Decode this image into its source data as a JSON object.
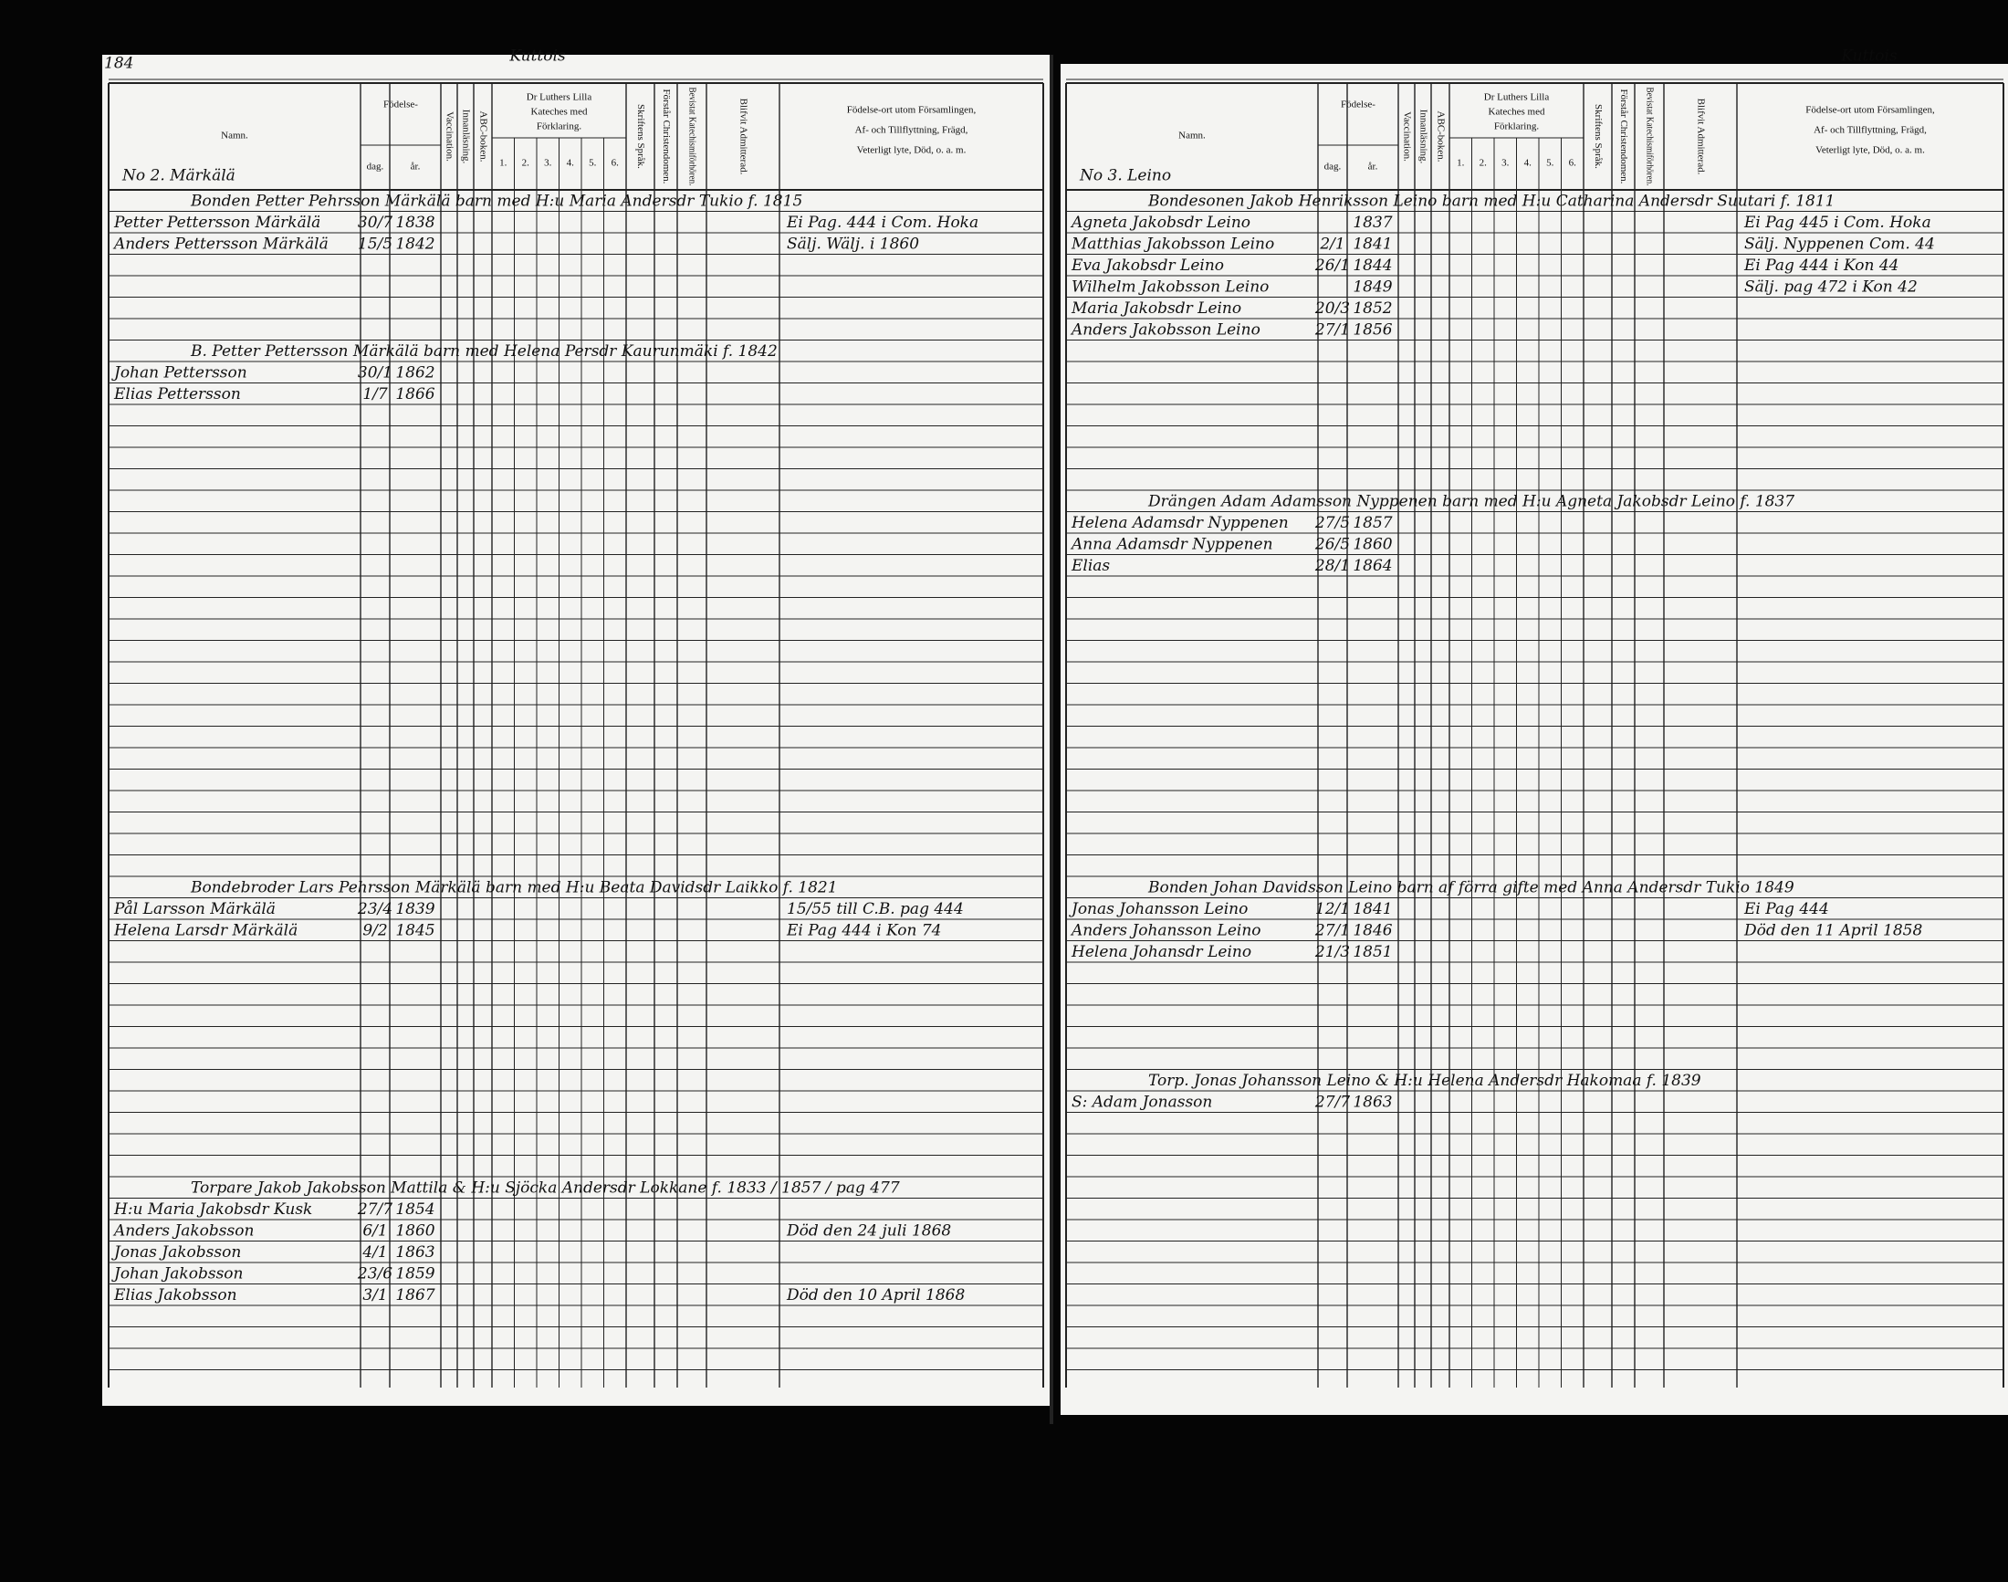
{
  "left_page": {
    "page_number": "184",
    "village": "Kuttois",
    "house": "No 2. Märkälä",
    "header": {
      "name": "Namn.",
      "birth": "Födelse-",
      "day": "dag.",
      "year": "år.",
      "vaccination": "Vaccination.",
      "reading": "Innanläsning.",
      "abc": "ABC-boken.",
      "luther": [
        "Dr Luthers Lilla",
        "Kateches med",
        "Förklaring."
      ],
      "parts": [
        "1.",
        "2.",
        "3.",
        "4.",
        "5.",
        "6."
      ],
      "scripture": "Skriftens Språk.",
      "understands": "Förstår Christendomen.",
      "attended": "Bevistat Katechismiförhören.",
      "admitted": "Blifvit Admitterad.",
      "remarks": [
        "Födelse-ort utom Församlingen,",
        "Af- och Tillflyttning, Frägd,",
        "Veterligt lyte, Död, o. a. m."
      ]
    },
    "groups": [
      {
        "headline": "Bonden Petter Pehrsson Märkälä barn med H:u Maria Andersdr Tukio f. 1815",
        "members": [
          {
            "name": "Petter Pettersson Märkälä",
            "day": "30/7",
            "year": "1838",
            "remark": "Ei Pag. 444 i Com. Hoka"
          },
          {
            "name": "Anders Pettersson Märkälä",
            "day": "15/5",
            "year": "1842",
            "remark": "Sälj. Wälj. i 1860"
          }
        ]
      },
      {
        "headline": "B. Petter Pettersson Märkälä barn med Helena Persdr Kaurunmäki f. 1842",
        "members": [
          {
            "name": "Johan Pettersson",
            "day": "30/1",
            "year": "1862",
            "remark": ""
          },
          {
            "name": "Elias Pettersson",
            "day": "1/7",
            "year": "1866",
            "remark": ""
          }
        ]
      },
      {
        "headline": "Bondebroder Lars Pehrsson Märkälä barn med H:u Beata Davidsdr Laikko f. 1821",
        "members": [
          {
            "name": "Pål Larsson Märkälä",
            "day": "23/4",
            "year": "1839",
            "remark": "15/55 till C.B. pag 444"
          },
          {
            "name": "Helena Larsdr Märkälä",
            "day": "9/2",
            "year": "1845",
            "remark": "Ei Pag 444 i Kon 74"
          }
        ]
      },
      {
        "headline": "Torpare Jakob Jakobsson Mattila & H:u Sjöcka Andersdr Lokkane f. 1833 / 1857 / pag 477",
        "members": [
          {
            "name": "H:u Maria Jakobsdr Kusk",
            "day": "27/7",
            "year": "1854",
            "remark": ""
          },
          {
            "name": "Anders Jakobsson",
            "day": "6/1",
            "year": "1860",
            "remark": "Död den 24 juli 1868"
          },
          {
            "name": "Jonas Jakobsson",
            "day": "4/1",
            "year": "1863",
            "remark": ""
          },
          {
            "name": "Johan Jakobsson",
            "day": "23/6",
            "year": "1859",
            "remark": ""
          },
          {
            "name": "Elias Jakobsson",
            "day": "3/1",
            "year": "1867",
            "remark": "Död den 10 April 1868"
          }
        ]
      }
    ]
  },
  "right_page": {
    "village": "Kuttois",
    "house": "No 3. Leino",
    "header": {
      "name": "Namn.",
      "birth": "Födelse-",
      "day": "dag.",
      "year": "år.",
      "vaccination": "Vaccination.",
      "reading": "Innanläsning.",
      "abc": "ABC-boken.",
      "luther": [
        "Dr Luthers Lilla",
        "Kateches med",
        "Förklaring."
      ],
      "parts": [
        "1.",
        "2.",
        "3.",
        "4.",
        "5.",
        "6."
      ],
      "scripture": "Skriftens Språk.",
      "understands": "Förstår Christendomen.",
      "attended": "Bevistat Katechismiförhören.",
      "admitted": "Blifvit Admitterad.",
      "remarks": [
        "Födelse-ort utom Församlingen,",
        "Af- och Tillflyttning, Frägd,",
        "Veterligt lyte, Död, o. a. m."
      ]
    },
    "groups": [
      {
        "headline": "Bondesonen Jakob Henriksson Leino barn med H:u Catharina Andersdr Suutari f. 1811",
        "members": [
          {
            "name": "Agneta Jakobsdr Leino",
            "day": "",
            "year": "1837",
            "remark": "Ei Pag 445 i Com. Hoka"
          },
          {
            "name": "Matthias Jakobsson Leino",
            "day": "2/1",
            "year": "1841",
            "remark": "Sälj. Nyppenen Com. 44"
          },
          {
            "name": "Eva Jakobsdr Leino",
            "day": "26/1",
            "year": "1844",
            "remark": "Ei Pag 444 i Kon 44"
          },
          {
            "name": "Wilhelm Jakobsson Leino",
            "day": "",
            "year": "1849",
            "remark": "Sälj. pag 472 i Kon 42"
          },
          {
            "name": "Maria Jakobsdr Leino",
            "day": "20/3",
            "year": "1852",
            "remark": ""
          },
          {
            "name": "Anders Jakobsson Leino",
            "day": "27/1",
            "year": "1856",
            "remark": ""
          }
        ]
      },
      {
        "headline": "Drängen Adam Adamsson Nyppenen barn med H:u Agneta Jakobsdr Leino f. 1837",
        "members": [
          {
            "name": "Helena Adamsdr Nyppenen",
            "day": "27/5",
            "year": "1857",
            "remark": ""
          },
          {
            "name": "Anna Adamsdr Nyppenen",
            "day": "26/5",
            "year": "1860",
            "remark": ""
          },
          {
            "name": "Elias",
            "day": "28/1",
            "year": "1864",
            "remark": ""
          }
        ]
      },
      {
        "headline": "Bonden Johan Davidsson Leino barn af förra gifte med Anna Andersdr Tukio 1849",
        "members": [
          {
            "name": "Jonas Johansson Leino",
            "day": "12/1",
            "year": "1841",
            "remark": "Ei Pag 444"
          },
          {
            "name": "Anders Johansson Leino",
            "day": "27/1",
            "year": "1846",
            "remark": "Död den 11 April 1858"
          },
          {
            "name": "Helena Johansdr Leino",
            "day": "21/3",
            "year": "1851",
            "remark": ""
          }
        ]
      },
      {
        "headline": "Torp. Jonas Johansson Leino & H:u Helena Andersdr Hakomaa f. 1839",
        "members": [
          {
            "name": "S: Adam Jonasson",
            "day": "27/7",
            "year": "1863",
            "remark": ""
          }
        ]
      }
    ]
  }
}
